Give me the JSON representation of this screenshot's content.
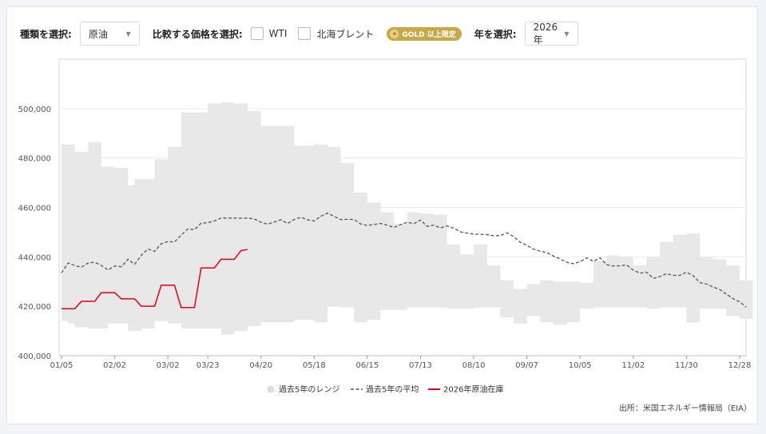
{
  "controls": {
    "type_label": "種類を選択:",
    "type_value": "原油",
    "compare_label": "比較する価格を選択:",
    "compare_options": [
      "WTI",
      "北海ブレント"
    ],
    "gold_badge": "GOLD 以上限定",
    "year_label": "年を選択:",
    "year_value": "2026年"
  },
  "colors": {
    "band": "#e8e8e8",
    "average": "#555555",
    "current": "#e60012",
    "gold": "#c8a94a"
  },
  "source": "出所：米国エネルギー情報局（EIA）",
  "chart_data": {
    "type": "line",
    "x_tick_labels": [
      "01/05",
      "02/02",
      "03/02",
      "03/23",
      "04/20",
      "05/18",
      "06/15",
      "07/13",
      "08/10",
      "09/07",
      "10/05",
      "11/02",
      "11/30",
      "12/28"
    ],
    "x_tick_weeks": [
      0,
      4,
      8,
      11,
      15,
      19,
      23,
      27,
      31,
      35,
      39,
      43,
      47,
      51
    ],
    "ylim": [
      400000,
      520000
    ],
    "y_ticks": [
      400000,
      420000,
      440000,
      460000,
      480000,
      500000
    ],
    "y_tick_labels": [
      "400,000",
      "420,000",
      "440,000",
      "460,000",
      "480,000",
      "500,000"
    ],
    "legend": [
      "過去5年のレンジ",
      "過去5年の平均",
      "2026年原油在庫"
    ],
    "legend_position": "bottom",
    "weeks": [
      0,
      0.5,
      1,
      1.5,
      2,
      2.5,
      3,
      3.5,
      4,
      4.5,
      5,
      5.5,
      6,
      6.5,
      7,
      7.5,
      8,
      8.5,
      9,
      9.5,
      10,
      10.5,
      11,
      11.5,
      12,
      12.5,
      13,
      13.5,
      14,
      14.5,
      15,
      15.5,
      16,
      16.5,
      17,
      17.5,
      18,
      18.5,
      19,
      19.5,
      20,
      20.5,
      21,
      21.5,
      22,
      22.5,
      23,
      23.5,
      24,
      24.5,
      25,
      25.5,
      26,
      26.5,
      27,
      27.5,
      28,
      28.5,
      29,
      29.5,
      30,
      30.5,
      31,
      31.5,
      32,
      32.5,
      33,
      33.5,
      34,
      34.5,
      35,
      35.5,
      36,
      36.5,
      37,
      37.5,
      38,
      38.5,
      39,
      39.5,
      40,
      40.5,
      41,
      41.5,
      42,
      42.5,
      43,
      43.5,
      44,
      44.5,
      45,
      45.5,
      46,
      46.5,
      47,
      47.5,
      48,
      48.5,
      49,
      49.5,
      50,
      50.5,
      51,
      51.5
    ],
    "series": [
      {
        "name": "過去5年のレンジ",
        "kind": "range",
        "max": [
          485500,
          485500,
          482500,
          482500,
          486500,
          486500,
          476500,
          476500,
          476000,
          476000,
          469000,
          471500,
          471500,
          471500,
          479500,
          479500,
          484500,
          484500,
          498500,
          498500,
          498500,
          498500,
          502000,
          502000,
          502500,
          502500,
          502000,
          502000,
          499000,
          499000,
          493000,
          493000,
          493000,
          493000,
          493000,
          485000,
          485000,
          485000,
          485500,
          485500,
          484500,
          484500,
          478000,
          478000,
          466000,
          466000,
          462000,
          462000,
          458000,
          458000,
          453500,
          453500,
          458000,
          458000,
          457500,
          457500,
          457000,
          457000,
          445000,
          445000,
          441000,
          441000,
          445000,
          445000,
          436500,
          436500,
          430500,
          430500,
          427000,
          427000,
          429000,
          429000,
          430500,
          430500,
          430000,
          430000,
          430000,
          430000,
          429500,
          429500,
          438500,
          438500,
          440500,
          440500,
          440000,
          440000,
          436500,
          436500,
          440000,
          440000,
          446000,
          446000,
          449000,
          449000,
          449500,
          449500,
          440000,
          440000,
          439000,
          439000,
          436500,
          436500,
          430500,
          430500
        ],
        "min": [
          414000,
          413000,
          411500,
          411500,
          411000,
          411000,
          411000,
          413000,
          413000,
          413000,
          410000,
          410000,
          411000,
          411000,
          414000,
          414000,
          413000,
          413000,
          411000,
          411000,
          411000,
          411000,
          411000,
          411000,
          408500,
          408500,
          410000,
          410000,
          412000,
          412000,
          413500,
          413500,
          413500,
          413500,
          413500,
          414500,
          414500,
          414500,
          413500,
          413500,
          420000,
          420000,
          419500,
          419500,
          413500,
          413500,
          414500,
          414500,
          418500,
          418500,
          418500,
          418500,
          419500,
          419500,
          419500,
          419500,
          419500,
          419500,
          419000,
          419000,
          419000,
          419000,
          419500,
          419500,
          419500,
          419500,
          415500,
          415500,
          413000,
          413000,
          416000,
          416000,
          413500,
          413500,
          412500,
          412500,
          413500,
          413500,
          419000,
          419000,
          419500,
          419500,
          419500,
          419500,
          419500,
          419500,
          419500,
          419500,
          419000,
          419000,
          419500,
          419500,
          419500,
          419500,
          413500,
          413500,
          419000,
          419000,
          419000,
          419000,
          416000,
          416000,
          415000,
          415000
        ]
      },
      {
        "name": "過去5年の平均",
        "kind": "dashed",
        "values": [
          433500,
          437500,
          436500,
          435800,
          437500,
          437800,
          436500,
          434700,
          436300,
          436000,
          439000,
          437000,
          440600,
          443200,
          442200,
          445300,
          446200,
          446000,
          448800,
          451300,
          451000,
          453600,
          453800,
          454500,
          455700,
          455700,
          455700,
          455600,
          455700,
          455300,
          454000,
          453200,
          454100,
          455000,
          453500,
          455100,
          456000,
          455000,
          454500,
          456400,
          457700,
          456400,
          455100,
          455200,
          455100,
          453300,
          452700,
          453100,
          453500,
          452800,
          451900,
          453000,
          454000,
          453400,
          454900,
          452300,
          452800,
          451700,
          452500,
          451600,
          450100,
          449600,
          449200,
          449100,
          449000,
          448500,
          448600,
          449700,
          448200,
          445900,
          444600,
          443100,
          442300,
          441700,
          440300,
          439100,
          437800,
          437200,
          438000,
          439600,
          438200,
          439600,
          436800,
          436300,
          436400,
          436700,
          434600,
          433400,
          433800,
          431300,
          432000,
          433200,
          432500,
          432500,
          433800,
          432400,
          429600,
          429000,
          427800,
          426800,
          424900,
          423100,
          421800,
          419600
        ],
        "values_note": "",
        "values_rescaled": []
      },
      {
        "name": "2026年原油在庫",
        "kind": "line",
        "values": [
          419000,
          419000,
          419000,
          422000,
          422000,
          422000,
          425500,
          425500,
          425500,
          423000,
          423000,
          423000,
          420000,
          420000,
          420000,
          428500,
          428500,
          428500,
          419500,
          419500,
          419500,
          435500,
          435500,
          435500,
          439000,
          439000,
          439000,
          442500,
          443000
        ]
      }
    ]
  }
}
